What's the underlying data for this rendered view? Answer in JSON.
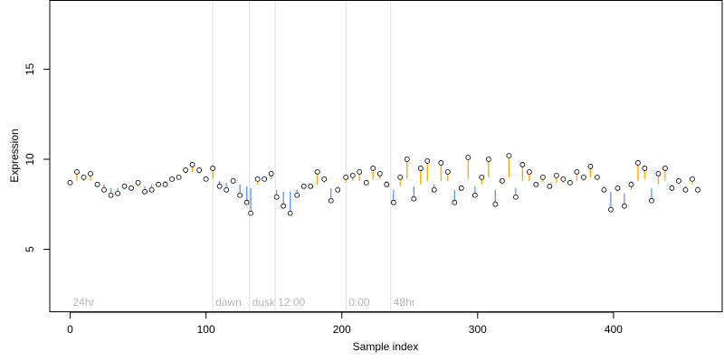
{
  "chart_data": {
    "type": "scatter",
    "title": "",
    "xlabel": "Sample index",
    "ylabel": "Expression",
    "xlim": [
      -15,
      480
    ],
    "ylim": [
      1.5,
      18.8
    ],
    "x_ticks": [
      0,
      100,
      200,
      300,
      400
    ],
    "y_ticks": [
      5,
      10,
      15
    ],
    "grid": false,
    "baseline_style": "stems drawn from a smoothed baseline to each point; orange where the point is above the baseline, blue where below",
    "colors": {
      "above_baseline": "#FFA500",
      "below_baseline": "#6495ED",
      "point_fill": "#ffffff",
      "point_stroke": "#000000",
      "phase_line": "#e0e0e0",
      "phase_label": "#b8b8b8"
    },
    "phase_markers": [
      {
        "label": "24hr",
        "x": 0
      },
      {
        "label": "dawn",
        "x": 105
      },
      {
        "label": "dusk",
        "x": 132
      },
      {
        "label": "12:00",
        "x": 151
      },
      {
        "label": "0:00",
        "x": 203
      },
      {
        "label": "48hr",
        "x": 236
      }
    ],
    "series": [
      {
        "values": [
          {
            "x": 0,
            "y": 8.7,
            "base": 8.7
          },
          {
            "x": 5,
            "y": 9.3,
            "base": 8.8
          },
          {
            "x": 10,
            "y": 9.0,
            "base": 8.8
          },
          {
            "x": 15,
            "y": 9.2,
            "base": 8.8
          },
          {
            "x": 20,
            "y": 8.6,
            "base": 8.7
          },
          {
            "x": 25,
            "y": 8.3,
            "base": 8.6
          },
          {
            "x": 30,
            "y": 8.0,
            "base": 8.4
          },
          {
            "x": 35,
            "y": 8.1,
            "base": 8.4
          },
          {
            "x": 40,
            "y": 8.5,
            "base": 8.4
          },
          {
            "x": 45,
            "y": 8.4,
            "base": 8.4
          },
          {
            "x": 50,
            "y": 8.7,
            "base": 8.5
          },
          {
            "x": 55,
            "y": 8.2,
            "base": 8.5
          },
          {
            "x": 60,
            "y": 8.3,
            "base": 8.6
          },
          {
            "x": 65,
            "y": 8.6,
            "base": 8.7
          },
          {
            "x": 70,
            "y": 8.6,
            "base": 8.8
          },
          {
            "x": 75,
            "y": 8.9,
            "base": 8.9
          },
          {
            "x": 80,
            "y": 9.0,
            "base": 9.0
          },
          {
            "x": 85,
            "y": 9.4,
            "base": 9.2
          },
          {
            "x": 90,
            "y": 9.7,
            "base": 9.3
          },
          {
            "x": 95,
            "y": 9.4,
            "base": 9.2
          },
          {
            "x": 100,
            "y": 8.9,
            "base": 9.0
          },
          {
            "x": 105,
            "y": 9.5,
            "base": 8.9
          },
          {
            "x": 110,
            "y": 8.5,
            "base": 8.8
          },
          {
            "x": 115,
            "y": 8.3,
            "base": 8.7
          },
          {
            "x": 120,
            "y": 8.8,
            "base": 8.7
          },
          {
            "x": 125,
            "y": 8.0,
            "base": 8.6
          },
          {
            "x": 130,
            "y": 7.6,
            "base": 8.5
          },
          {
            "x": 133,
            "y": 7.0,
            "base": 8.4
          },
          {
            "x": 138,
            "y": 8.9,
            "base": 8.6
          },
          {
            "x": 143,
            "y": 8.9,
            "base": 8.8
          },
          {
            "x": 148,
            "y": 9.2,
            "base": 8.9
          },
          {
            "x": 152,
            "y": 7.9,
            "base": 8.3
          },
          {
            "x": 157,
            "y": 7.4,
            "base": 8.2
          },
          {
            "x": 162,
            "y": 7.0,
            "base": 8.2
          },
          {
            "x": 167,
            "y": 8.0,
            "base": 8.3
          },
          {
            "x": 172,
            "y": 8.5,
            "base": 8.4
          },
          {
            "x": 177,
            "y": 8.5,
            "base": 8.4
          },
          {
            "x": 182,
            "y": 9.3,
            "base": 8.6
          },
          {
            "x": 187,
            "y": 8.9,
            "base": 8.7
          },
          {
            "x": 192,
            "y": 7.7,
            "base": 8.4
          },
          {
            "x": 197,
            "y": 8.3,
            "base": 8.5
          },
          {
            "x": 203,
            "y": 9.0,
            "base": 8.7
          },
          {
            "x": 208,
            "y": 9.1,
            "base": 8.8
          },
          {
            "x": 213,
            "y": 9.3,
            "base": 8.8
          },
          {
            "x": 218,
            "y": 8.7,
            "base": 8.8
          },
          {
            "x": 223,
            "y": 9.5,
            "base": 8.9
          },
          {
            "x": 228,
            "y": 9.2,
            "base": 8.9
          },
          {
            "x": 233,
            "y": 8.6,
            "base": 8.8
          },
          {
            "x": 238,
            "y": 7.6,
            "base": 8.3
          },
          {
            "x": 243,
            "y": 9.0,
            "base": 8.5
          },
          {
            "x": 248,
            "y": 10.0,
            "base": 8.9
          },
          {
            "x": 253,
            "y": 7.8,
            "base": 8.5
          },
          {
            "x": 258,
            "y": 9.5,
            "base": 8.6
          },
          {
            "x": 263,
            "y": 9.9,
            "base": 8.8
          },
          {
            "x": 268,
            "y": 8.3,
            "base": 8.6
          },
          {
            "x": 273,
            "y": 9.8,
            "base": 8.8
          },
          {
            "x": 278,
            "y": 9.3,
            "base": 8.8
          },
          {
            "x": 283,
            "y": 7.6,
            "base": 8.3
          },
          {
            "x": 288,
            "y": 8.4,
            "base": 8.4
          },
          {
            "x": 293,
            "y": 10.1,
            "base": 8.9
          },
          {
            "x": 298,
            "y": 8.0,
            "base": 8.5
          },
          {
            "x": 303,
            "y": 9.0,
            "base": 8.6
          },
          {
            "x": 308,
            "y": 10.0,
            "base": 9.0
          },
          {
            "x": 313,
            "y": 7.5,
            "base": 8.3
          },
          {
            "x": 318,
            "y": 8.8,
            "base": 8.6
          },
          {
            "x": 323,
            "y": 10.2,
            "base": 9.0
          },
          {
            "x": 328,
            "y": 7.9,
            "base": 8.4
          },
          {
            "x": 333,
            "y": 9.7,
            "base": 8.8
          },
          {
            "x": 338,
            "y": 9.3,
            "base": 8.8
          },
          {
            "x": 343,
            "y": 8.6,
            "base": 8.7
          },
          {
            "x": 348,
            "y": 9.0,
            "base": 8.7
          },
          {
            "x": 353,
            "y": 8.5,
            "base": 8.6
          },
          {
            "x": 358,
            "y": 9.1,
            "base": 8.7
          },
          {
            "x": 363,
            "y": 8.9,
            "base": 8.7
          },
          {
            "x": 368,
            "y": 8.7,
            "base": 8.6
          },
          {
            "x": 373,
            "y": 9.3,
            "base": 8.8
          },
          {
            "x": 378,
            "y": 9.0,
            "base": 8.8
          },
          {
            "x": 383,
            "y": 9.6,
            "base": 9.0
          },
          {
            "x": 388,
            "y": 9.0,
            "base": 8.9
          },
          {
            "x": 393,
            "y": 8.3,
            "base": 8.5
          },
          {
            "x": 398,
            "y": 7.2,
            "base": 8.2
          },
          {
            "x": 403,
            "y": 8.4,
            "base": 8.2
          },
          {
            "x": 408,
            "y": 7.4,
            "base": 8.1
          },
          {
            "x": 413,
            "y": 8.6,
            "base": 8.3
          },
          {
            "x": 418,
            "y": 9.8,
            "base": 8.8
          },
          {
            "x": 423,
            "y": 9.5,
            "base": 8.9
          },
          {
            "x": 428,
            "y": 7.7,
            "base": 8.4
          },
          {
            "x": 433,
            "y": 9.2,
            "base": 8.6
          },
          {
            "x": 438,
            "y": 9.5,
            "base": 8.8
          },
          {
            "x": 443,
            "y": 8.4,
            "base": 8.6
          },
          {
            "x": 448,
            "y": 8.8,
            "base": 8.6
          },
          {
            "x": 453,
            "y": 8.3,
            "base": 8.5
          },
          {
            "x": 458,
            "y": 8.9,
            "base": 8.6
          },
          {
            "x": 462,
            "y": 8.3,
            "base": 8.5
          }
        ]
      }
    ]
  }
}
